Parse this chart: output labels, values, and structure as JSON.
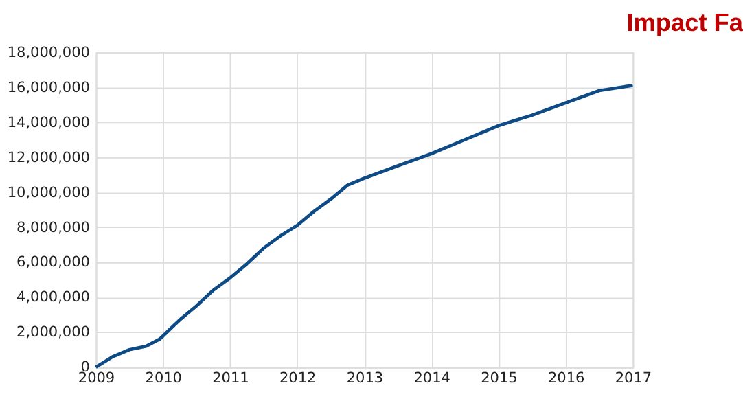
{
  "chart_data": {
    "type": "line",
    "title": "Impact Fa",
    "x": [
      2009,
      2009.25,
      2009.5,
      2009.75,
      2009.95,
      2010.25,
      2010.5,
      2010.75,
      2011,
      2011.25,
      2011.5,
      2011.75,
      2012,
      2012.25,
      2012.5,
      2012.75,
      2013,
      2013.5,
      2014,
      2014.5,
      2015,
      2015.5,
      2016,
      2016.5,
      2017
    ],
    "series": [
      {
        "color": "#0d4a86",
        "values": [
          0,
          600000,
          1000000,
          1200000,
          1600000,
          2700000,
          3500000,
          4400000,
          5100000,
          5900000,
          6800000,
          7500000,
          8100000,
          8900000,
          9600000,
          10400000,
          10800000,
          11500000,
          12200000,
          13000000,
          13800000,
          14400000,
          15100000,
          15800000,
          16100000
        ]
      }
    ],
    "xlim": [
      2009,
      2017
    ],
    "xticks": [
      2009,
      2010,
      2011,
      2012,
      2013,
      2014,
      2015,
      2016,
      2017
    ],
    "ylim": [
      0,
      18000000
    ],
    "yticks": [
      0,
      {
        "value": 2000000,
        "label": "2,000,000"
      },
      {
        "value": 4000000,
        "label": "4,000,000"
      },
      {
        "value": 6000000,
        "label": "6,000,000"
      },
      {
        "value": 8000000,
        "label": "8,000,000"
      },
      {
        "value": 10000000,
        "label": "10,000,000"
      },
      {
        "value": 12000000,
        "label": "12,000,000"
      },
      {
        "value": 14000000,
        "label": "14,000,000"
      },
      {
        "value": 16000000,
        "label": "16,000,000"
      },
      {
        "value": 18000000,
        "label": "18,000,000"
      }
    ],
    "grid": true,
    "marker": "none",
    "line_style": "solid"
  }
}
